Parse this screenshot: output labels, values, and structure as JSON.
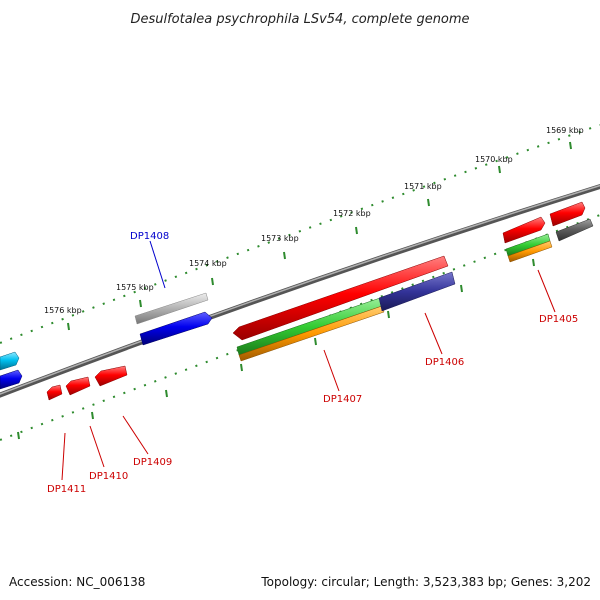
{
  "title": "Desulfotalea psychrophila LSv54, complete genome",
  "footer": {
    "accession": "Accession: NC_006138",
    "summary": "Topology: circular; Length: 3,523,383 bp; Genes: 3,202"
  },
  "scale_labels": [
    "1569 kbp",
    "1570 kbp",
    "1571 kbp",
    "1572 kbp",
    "1573 kbp",
    "1574 kbp",
    "1575 kbp",
    "1576 kbp"
  ],
  "gene_labels": [
    {
      "name": "DP1408",
      "color": "#0000cc"
    },
    {
      "name": "DP1405",
      "color": "#cc0000"
    },
    {
      "name": "DP1406",
      "color": "#cc0000"
    },
    {
      "name": "DP1407",
      "color": "#cc0000"
    },
    {
      "name": "DP1409",
      "color": "#cc0000"
    },
    {
      "name": "DP1410",
      "color": "#cc0000"
    },
    {
      "name": "DP1411",
      "color": "#cc0000"
    }
  ],
  "colors": {
    "backbone": "#808080",
    "scale_ticks": "#2e8b2e",
    "gene_red": "#ff0000",
    "gene_blue": "#0000ee",
    "gene_cyan": "#00c0f0",
    "gene_gray": "#b8b8b8",
    "gene_dark_gray": "#606060",
    "feature_green": "#33cc33",
    "feature_orange": "#ff9900",
    "feature_navy": "#333399"
  }
}
